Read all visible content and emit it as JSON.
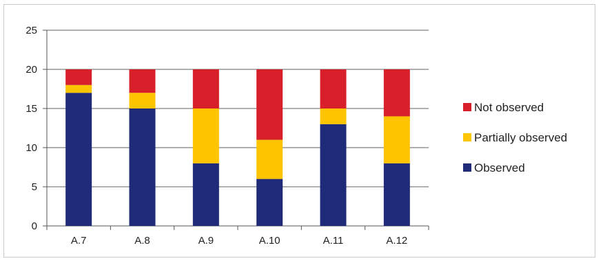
{
  "chart_data": {
    "type": "bar",
    "stacked": true,
    "categories": [
      "A.7",
      "A.8",
      "A.9",
      "A.10",
      "A.11",
      "A.12"
    ],
    "series": [
      {
        "name": "Observed",
        "color": "#1f2a78",
        "values": [
          17,
          15,
          8,
          6,
          13,
          8
        ]
      },
      {
        "name": "Partially observed",
        "color": "#ffc400",
        "values": [
          1,
          2,
          7,
          5,
          2,
          6
        ]
      },
      {
        "name": "Not observed",
        "color": "#d7202a",
        "values": [
          2,
          3,
          5,
          9,
          5,
          6
        ]
      }
    ],
    "yticks": [
      "0",
      "5",
      "10",
      "15",
      "20",
      "25"
    ],
    "ylim": [
      0,
      25
    ],
    "grid": true,
    "legend_position": "right"
  }
}
